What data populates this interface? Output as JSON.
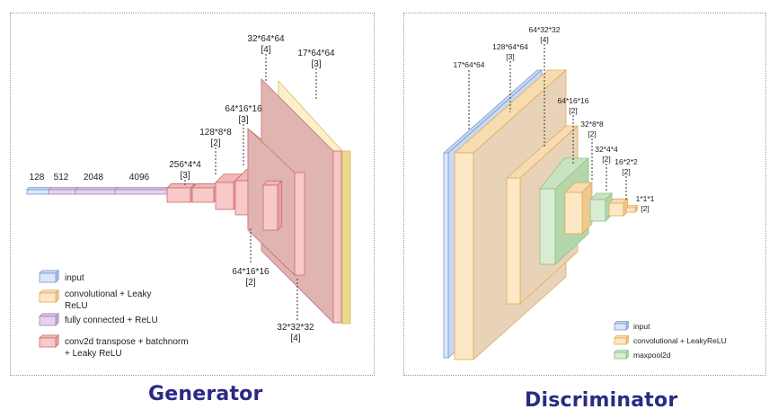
{
  "colors": {
    "input": {
      "front": "#dbe7fb",
      "side": "#a7bfe8",
      "top": "#c7d7f4",
      "stroke": "#7b98cf",
      "back": "#c9d8f3"
    },
    "conv": {
      "front": "#fde8c6",
      "side": "#f0c98e",
      "top": "#f7dcb2",
      "stroke": "#e0a955",
      "back": "#e9d3b8"
    },
    "fc": {
      "front": "#e4d3ec",
      "side": "#c8a9d6",
      "top": "#d8c1e3",
      "stroke": "#a682b9"
    },
    "deconv": {
      "front": "#f7c9c9",
      "side": "#e6a2a2",
      "top": "#f0b7b7",
      "stroke": "#cc6e6e",
      "back": "#dfb4b1"
    },
    "deconv_back": "#dfb4b1",
    "yellow": {
      "front": "#fbf0c9",
      "side": "#ecd88f",
      "top": "#f5e6ad",
      "stroke": "#d6bd5f"
    },
    "pool": {
      "front": "#d8ecd3",
      "side": "#b4d6ab",
      "top": "#c8e3c1",
      "stroke": "#8ec083"
    },
    "caption": "#2b2a83"
  },
  "generator": {
    "caption": "Generator",
    "fc_labels": [
      "128",
      "512",
      "2048",
      "4096"
    ],
    "conv_labels": [
      {
        "size": "256*4*4",
        "channels": "[3]"
      },
      {
        "size": "128*8*8",
        "channels": "[2]"
      },
      {
        "size": "64*16*16",
        "channels": "[3]"
      },
      {
        "size": "32*64*64",
        "channels": "[4]"
      },
      {
        "size": "17*64*64",
        "channels": "[3]"
      },
      {
        "size": "64*16*16",
        "channels": "[2]"
      },
      {
        "size": "32*32*32",
        "channels": "[4]"
      }
    ],
    "legend": [
      {
        "icon": "input-legend-icon",
        "lines": [
          "input"
        ]
      },
      {
        "icon": "conv-legend-icon",
        "lines": [
          "convolutional + Leaky",
          "ReLU"
        ]
      },
      {
        "icon": "fc-legend-icon",
        "lines": [
          "fully connected + ReLU"
        ]
      },
      {
        "icon": "deconv-legend-icon",
        "lines": [
          "conv2d transpose + batchnorm",
          "+ Leaky ReLU"
        ]
      }
    ]
  },
  "discriminator": {
    "caption": "Discriminator",
    "labels": [
      {
        "size": "17*64*64",
        "channels": ""
      },
      {
        "size": "128*64*64",
        "channels": "[3]"
      },
      {
        "size": "64*32*32",
        "channels": "[4]"
      },
      {
        "size": "64*16*16",
        "channels": "[2]"
      },
      {
        "size": "32*8*8",
        "channels": "[2]"
      },
      {
        "size": "32*4*4",
        "channels": "[2]"
      },
      {
        "size": "16*2*2",
        "channels": "[2]"
      },
      {
        "size": "1*1*1",
        "channels": "[2]"
      }
    ],
    "legend": [
      {
        "icon": "input-legend-icon",
        "label": "input"
      },
      {
        "icon": "conv-legend-icon",
        "label": "convolutional + LeakyReLU"
      },
      {
        "icon": "maxpool-legend-icon",
        "label": "maxpool2d"
      }
    ]
  }
}
